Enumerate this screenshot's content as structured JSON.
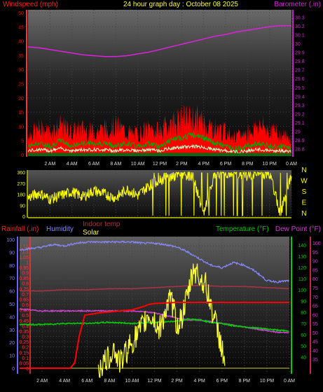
{
  "page": {
    "title": "24 hour graph day : October 08 2025"
  },
  "colors": {
    "background": "#000000",
    "wind": "#ff0000",
    "wind_avg": "#00aa00",
    "wind_dir": "#ffff00",
    "barometer": "#dd22dd",
    "rain": "#ff0000",
    "humidity": "#8888ff",
    "indoor_temp": "#aa3344",
    "solar": "#ffff33",
    "temperature": "#00cc00",
    "dew_point": "#cc44cc",
    "grid_dot": "#444444"
  },
  "chart_data": [
    {
      "type": "line",
      "name": "wind-barometer",
      "title": "24 hour graph day : October 08 2025",
      "left_label": "Windspeed (mph)",
      "right_label": "Barometer (.in)",
      "x_ticks": [
        "2 AM",
        "4 AM",
        "6 AM",
        "8 AM",
        "10 AM",
        "12 PM",
        "2 PM",
        "4 PM",
        "6 PM",
        "8 PM",
        "10 PM",
        "0 AM"
      ],
      "left_ticks": [
        "0",
        "5",
        "10",
        "15",
        "20",
        "25",
        "30",
        "35",
        "40",
        "45",
        "50"
      ],
      "left_ylim": [
        0,
        50
      ],
      "right_ticks": [
        "28.8",
        "28.9",
        "29",
        "29.1",
        "29.2",
        "29.3",
        "29.4",
        "29.5",
        "29.6",
        "29.7",
        "29.8",
        "29.9",
        "30",
        "30.1",
        "30.2",
        "30.3"
      ],
      "right_ylim": [
        28.75,
        30.35
      ],
      "x_hours_range": [
        0,
        24
      ],
      "series": [
        {
          "key": "barometer",
          "axis": "right",
          "x": [
            0,
            1,
            2,
            3,
            4,
            5,
            6,
            7,
            8,
            9,
            10,
            11,
            12,
            13,
            14,
            15,
            16,
            17,
            18,
            19,
            20,
            21,
            22,
            23,
            24
          ],
          "values": [
            29.96,
            29.95,
            29.93,
            29.91,
            29.89,
            29.87,
            29.86,
            29.85,
            29.85,
            29.86,
            29.88,
            29.9,
            29.93,
            29.96,
            29.99,
            30.02,
            30.05,
            30.08,
            30.1,
            30.13,
            30.15,
            30.17,
            30.19,
            30.2,
            30.2
          ]
        },
        {
          "key": "wind_gust",
          "axis": "left",
          "x": [
            0,
            1,
            2,
            3,
            4,
            5,
            6,
            7,
            8,
            9,
            10,
            11,
            12,
            13,
            14,
            15,
            16,
            17,
            18,
            19,
            20,
            21,
            22,
            23,
            24
          ],
          "values": [
            7,
            9,
            8,
            10,
            8,
            9,
            8,
            9,
            10,
            8,
            7,
            9,
            8,
            11,
            12,
            13,
            11,
            9,
            8,
            6,
            8,
            10,
            9,
            7,
            6
          ]
        },
        {
          "key": "wind_avg",
          "axis": "left",
          "x": [
            0,
            1,
            2,
            3,
            4,
            5,
            6,
            7,
            8,
            9,
            10,
            11,
            12,
            13,
            14,
            15,
            16,
            17,
            18,
            19,
            20,
            21,
            22,
            23,
            24
          ],
          "values": [
            2,
            3,
            2,
            4,
            2,
            3,
            3,
            3,
            2,
            3,
            2,
            3,
            2,
            4,
            5,
            6,
            5,
            3,
            2,
            1,
            2,
            3,
            2,
            2,
            1
          ]
        }
      ]
    },
    {
      "type": "line",
      "name": "wind-direction",
      "y_ticks": [
        "0",
        "90",
        "180",
        "270",
        "360"
      ],
      "ylim": [
        0,
        360
      ],
      "compass_labels": [
        "N",
        "W",
        "S",
        "E",
        "N"
      ],
      "x_ticks": [
        "2 AM",
        "4 AM",
        "6 AM",
        "8 AM",
        "10 AM",
        "12 PM",
        "2 PM",
        "4 PM",
        "6 PM",
        "8 PM",
        "10 PM",
        "0 AM"
      ],
      "series": [
        {
          "key": "wind_dir",
          "x": [
            0,
            1,
            2,
            3,
            4,
            5,
            6,
            7,
            8,
            9,
            10,
            11,
            12,
            13,
            14,
            15,
            16,
            17,
            18,
            19,
            20,
            21,
            22,
            23,
            24
          ],
          "values": [
            150,
            190,
            140,
            170,
            200,
            160,
            210,
            180,
            150,
            220,
            170,
            250,
            300,
            320,
            340,
            330,
            10,
            340,
            350,
            340,
            330,
            340,
            350,
            20,
            340
          ]
        }
      ]
    },
    {
      "type": "line",
      "name": "rain-humidity-temperature",
      "labels": {
        "rainfall": "Rainfall (.in)",
        "humidity": "Humidity",
        "indoor_temp": "Indoor temp",
        "solar": "Solar",
        "temperature": "Temperature (°F)",
        "dew_point": "Dew Point (°F)"
      },
      "left_ticks": [
        "0",
        "0.05",
        "0.1",
        "0.15",
        "0.2",
        "0.25",
        "0.3",
        "0.35",
        "0.4",
        "0.45",
        "0.5",
        "0.55",
        "0.6",
        "0.65",
        "0.7",
        "0.75",
        "0.8",
        "0.85",
        "0.9",
        "0.95",
        "1",
        "1.05",
        "1.1",
        "1.15"
      ],
      "left_ylim": [
        0,
        1.2
      ],
      "humidity_ticks": [
        "0",
        "10",
        "20",
        "30",
        "40",
        "50",
        "60",
        "70",
        "80",
        "90",
        "100"
      ],
      "humidity_ylim": [
        0,
        100
      ],
      "temp_ticks": [
        "40",
        "50",
        "60",
        "70",
        "80",
        "90",
        "100",
        "110",
        "120",
        "130",
        "140"
      ],
      "temp_ylim": [
        30,
        145
      ],
      "dew_ticks": [
        "35",
        "40",
        "45",
        "50",
        "55",
        "60",
        "65",
        "70",
        "75",
        "80",
        "85",
        "90",
        "95",
        "100"
      ],
      "dew_ylim": [
        30,
        102
      ],
      "x_ticks": [
        "2 AM",
        "4 AM",
        "6 AM",
        "8 AM",
        "10 AM",
        "12 PM",
        "2 PM",
        "4 PM",
        "6 PM",
        "8 PM",
        "10 PM",
        "0 AM"
      ],
      "series": [
        {
          "key": "humidity",
          "axis": "humidity",
          "x": [
            0,
            1,
            2,
            3,
            4,
            5,
            6,
            7,
            8,
            9,
            10,
            11,
            12,
            13,
            14,
            15,
            16,
            17,
            18,
            19,
            20,
            21,
            22,
            23,
            24
          ],
          "values": [
            92,
            93,
            94,
            96,
            95,
            97,
            98,
            98,
            98,
            98,
            98,
            97,
            97,
            96,
            94,
            90,
            85,
            80,
            78,
            82,
            80,
            75,
            68,
            67,
            68
          ]
        },
        {
          "key": "indoor_temp",
          "axis": "temp",
          "x": [
            0,
            2,
            4,
            6,
            8,
            10,
            12,
            14,
            16,
            18,
            20,
            22,
            24
          ],
          "values": [
            99,
            99,
            100,
            100,
            101,
            101,
            102,
            103,
            104,
            103,
            103,
            102,
            101
          ]
        },
        {
          "key": "rainfall",
          "axis": "left",
          "x": [
            0,
            4.5,
            4.9,
            5.3,
            5.8,
            7,
            9,
            10,
            11,
            11.5,
            12,
            14,
            16,
            18,
            20,
            22,
            24
          ],
          "values": [
            0,
            0,
            0.05,
            0.3,
            0.5,
            0.52,
            0.54,
            0.55,
            0.58,
            0.6,
            0.61,
            0.62,
            0.62,
            0.62,
            0.62,
            0.62,
            0.62
          ]
        },
        {
          "key": "temperature",
          "axis": "temp",
          "x": [
            0,
            2,
            4,
            6,
            8,
            10,
            12,
            14,
            15,
            16,
            17,
            18,
            19,
            20,
            21,
            22,
            23,
            24
          ],
          "values": [
            69,
            69,
            70,
            70,
            71,
            70,
            71,
            72,
            74,
            73,
            71,
            70,
            68,
            67,
            66,
            65,
            64,
            63
          ]
        },
        {
          "key": "dew_point",
          "axis": "dew",
          "x": [
            0,
            2,
            4,
            6,
            8,
            10,
            12,
            14,
            15,
            16,
            17,
            18,
            19,
            20,
            21,
            22,
            23,
            24
          ],
          "values": [
            63,
            62,
            62,
            62,
            62,
            62,
            61,
            58,
            57,
            57,
            56,
            55,
            54,
            53,
            52,
            51,
            50,
            50
          ]
        },
        {
          "key": "solar",
          "axis": "left",
          "x": [
            7,
            8,
            8.3,
            8.6,
            9,
            9.4,
            10,
            10.4,
            11,
            11.4,
            12,
            12.4,
            13,
            13.5,
            14,
            14.5,
            15,
            15.5,
            16,
            16.5,
            17,
            17.5,
            18,
            18.3
          ],
          "values": [
            0,
            0.1,
            0.2,
            0.12,
            0.05,
            0.15,
            0.25,
            0.3,
            0.4,
            0.5,
            0.45,
            0.35,
            0.55,
            0.65,
            0.4,
            0.5,
            0.7,
            0.95,
            0.85,
            0.8,
            0.6,
            0.4,
            0.2,
            0
          ]
        }
      ]
    }
  ]
}
